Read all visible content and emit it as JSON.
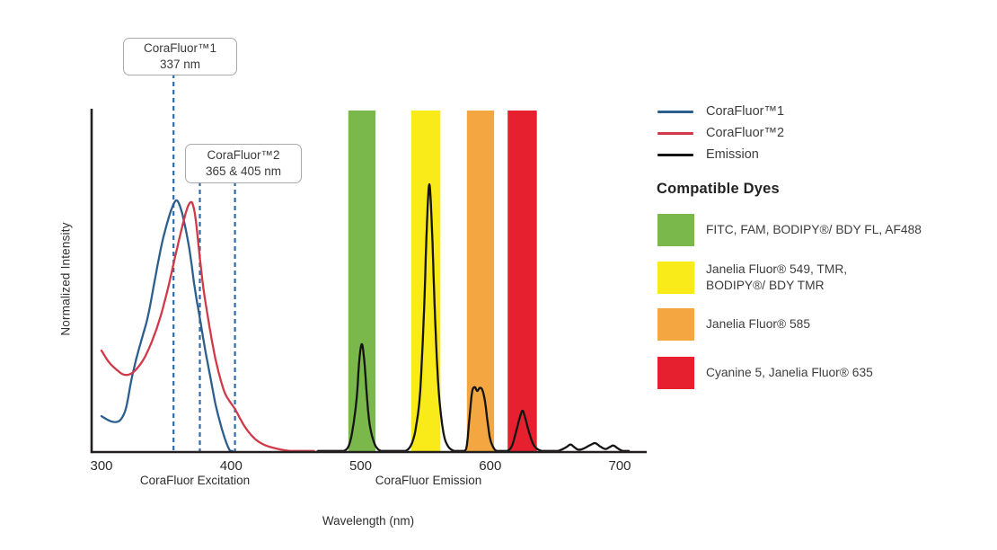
{
  "chart_data": {
    "type": "line",
    "title": "",
    "xlabel": "Wavelength (nm)",
    "ylabel": "Normalized Intensity",
    "x_ticks": [
      300,
      400,
      500,
      600,
      700
    ],
    "xlim": [
      292,
      722
    ],
    "ylim": [
      0,
      1
    ],
    "grid": false,
    "x_axis_group_labels": [
      {
        "label": "CoraFluor Excitation"
      },
      {
        "label": "CoraFluor Emission"
      }
    ],
    "annotations": [
      {
        "title": "CoraFluor™1",
        "value": "337 nm",
        "lines_at_nm": [
          355.6
        ]
      },
      {
        "title": "CoraFluor™2",
        "value": "365 & 405 nm",
        "lines_at_nm": [
          375.9,
          403
        ]
      }
    ],
    "marker_line_color": "#2f6ba6",
    "dye_bands": [
      {
        "id": "green",
        "from_nm": 490.5,
        "to_nm": 511.5,
        "color": "#7bb84c",
        "dyes": "FITC, FAM, BODIPY®/ BDY FL, AF488"
      },
      {
        "id": "yellow",
        "from_nm": 539.0,
        "to_nm": 561.5,
        "color": "#f9eb19",
        "dyes": "Janelia Fluor® 549, TMR, BODIPY®/ BDY TMR"
      },
      {
        "id": "orange",
        "from_nm": 582.0,
        "to_nm": 603.0,
        "color": "#f4a640",
        "dyes": "Janelia Fluor® 585"
      },
      {
        "id": "red",
        "from_nm": 613.5,
        "to_nm": 636.0,
        "color": "#e6202e",
        "dyes": "Cyanine 5, Janelia Fluor® 635"
      }
    ],
    "series": [
      {
        "name": "CoraFluor™1",
        "kind": "excitation",
        "color": "#2d5f8e",
        "points": [
          [
            300,
            0.105
          ],
          [
            306,
            0.092
          ],
          [
            311,
            0.088
          ],
          [
            315,
            0.096
          ],
          [
            319,
            0.13
          ],
          [
            323,
            0.21
          ],
          [
            327,
            0.275
          ],
          [
            331,
            0.33
          ],
          [
            336,
            0.4
          ],
          [
            341,
            0.5
          ],
          [
            346,
            0.6
          ],
          [
            351,
            0.675
          ],
          [
            355,
            0.72
          ],
          [
            358,
            0.737
          ],
          [
            361,
            0.715
          ],
          [
            364,
            0.67
          ],
          [
            368,
            0.59
          ],
          [
            372,
            0.48
          ],
          [
            376,
            0.39
          ],
          [
            380,
            0.3
          ],
          [
            384,
            0.22
          ],
          [
            388,
            0.14
          ],
          [
            392,
            0.08
          ],
          [
            395,
            0.042
          ],
          [
            398,
            0.012
          ],
          [
            400,
            0.001
          ],
          [
            401,
            0
          ]
        ]
      },
      {
        "name": "CoraFluor™2",
        "kind": "excitation",
        "color": "#d03a48",
        "points": [
          [
            300,
            0.297
          ],
          [
            306,
            0.262
          ],
          [
            312,
            0.24
          ],
          [
            317,
            0.227
          ],
          [
            322,
            0.228
          ],
          [
            327,
            0.243
          ],
          [
            333,
            0.275
          ],
          [
            339,
            0.325
          ],
          [
            345,
            0.39
          ],
          [
            351,
            0.475
          ],
          [
            357,
            0.575
          ],
          [
            362,
            0.655
          ],
          [
            366,
            0.712
          ],
          [
            369,
            0.732
          ],
          [
            371,
            0.718
          ],
          [
            373,
            0.672
          ],
          [
            376,
            0.565
          ],
          [
            379,
            0.47
          ],
          [
            383,
            0.375
          ],
          [
            387,
            0.29
          ],
          [
            391,
            0.225
          ],
          [
            395,
            0.175
          ],
          [
            399,
            0.148
          ],
          [
            403,
            0.126
          ],
          [
            407,
            0.098
          ],
          [
            411,
            0.072
          ],
          [
            416,
            0.048
          ],
          [
            421,
            0.031
          ],
          [
            427,
            0.019
          ],
          [
            434,
            0.011
          ],
          [
            442,
            0.005
          ],
          [
            450,
            0.002
          ],
          [
            458,
            0.001
          ],
          [
            464,
            0
          ]
        ]
      },
      {
        "name": "Emission",
        "kind": "emission",
        "color": "#141414",
        "points": [
          [
            466,
            0
          ],
          [
            480,
            0
          ],
          [
            487,
            0.003
          ],
          [
            491,
            0.02
          ],
          [
            494,
            0.07
          ],
          [
            497,
            0.16
          ],
          [
            499,
            0.27
          ],
          [
            501,
            0.316
          ],
          [
            503,
            0.26
          ],
          [
            505,
            0.155
          ],
          [
            507,
            0.08
          ],
          [
            510,
            0.032
          ],
          [
            513,
            0.01
          ],
          [
            517,
            0.002
          ],
          [
            522,
            0
          ],
          [
            530,
            0
          ],
          [
            536,
            0.006
          ],
          [
            540,
            0.03
          ],
          [
            543,
            0.08
          ],
          [
            546,
            0.18
          ],
          [
            549,
            0.42
          ],
          [
            551,
            0.65
          ],
          [
            553,
            0.784
          ],
          [
            555,
            0.66
          ],
          [
            557,
            0.44
          ],
          [
            559,
            0.26
          ],
          [
            561,
            0.145
          ],
          [
            564,
            0.055
          ],
          [
            567,
            0.02
          ],
          [
            571,
            0.005
          ],
          [
            576,
            0.001
          ],
          [
            580,
            0.003
          ],
          [
            582,
            0.02
          ],
          [
            584,
            0.1
          ],
          [
            586,
            0.175
          ],
          [
            588,
            0.19
          ],
          [
            590,
            0.179
          ],
          [
            592,
            0.188
          ],
          [
            594,
            0.181
          ],
          [
            596,
            0.148
          ],
          [
            598,
            0.088
          ],
          [
            600,
            0.038
          ],
          [
            603,
            0.01
          ],
          [
            606,
            0.002
          ],
          [
            610,
            0.001
          ],
          [
            614,
            0.005
          ],
          [
            617,
            0.02
          ],
          [
            620,
            0.06
          ],
          [
            623,
            0.103
          ],
          [
            625,
            0.121
          ],
          [
            627,
            0.1
          ],
          [
            630,
            0.058
          ],
          [
            633,
            0.025
          ],
          [
            636,
            0.01
          ],
          [
            640,
            0.003
          ],
          [
            645,
            0.001
          ],
          [
            651,
            0.002
          ],
          [
            655,
            0.007
          ],
          [
            659,
            0.015
          ],
          [
            662,
            0.022
          ],
          [
            665,
            0.014
          ],
          [
            668,
            0.007
          ],
          [
            672,
            0.01
          ],
          [
            677,
            0.02
          ],
          [
            681,
            0.026
          ],
          [
            685,
            0.016
          ],
          [
            689,
            0.009
          ],
          [
            692,
            0.014
          ],
          [
            695,
            0.019
          ],
          [
            698,
            0.012
          ],
          [
            701,
            0.005
          ],
          [
            704,
            0.002
          ],
          [
            707,
            0
          ]
        ]
      }
    ]
  },
  "legend": {
    "series": [
      {
        "label": "CoraFluor™1",
        "color": "#2d5f8e"
      },
      {
        "label": "CoraFluor™2",
        "color": "#d03a48"
      },
      {
        "label": "Emission",
        "color": "#141414"
      }
    ],
    "dyes_heading": "Compatible Dyes",
    "dyes": [
      {
        "color": "#7bb84c",
        "label": "FITC, FAM, BODIPY®/ BDY FL, AF488"
      },
      {
        "color": "#f9eb19",
        "label": "Janelia Fluor® 549, TMR,\nBODIPY®/ BDY TMR"
      },
      {
        "color": "#f4a640",
        "label": "Janelia Fluor® 585"
      },
      {
        "color": "#e6202e",
        "label": "Cyanine 5, Janelia Fluor® 635"
      }
    ]
  }
}
